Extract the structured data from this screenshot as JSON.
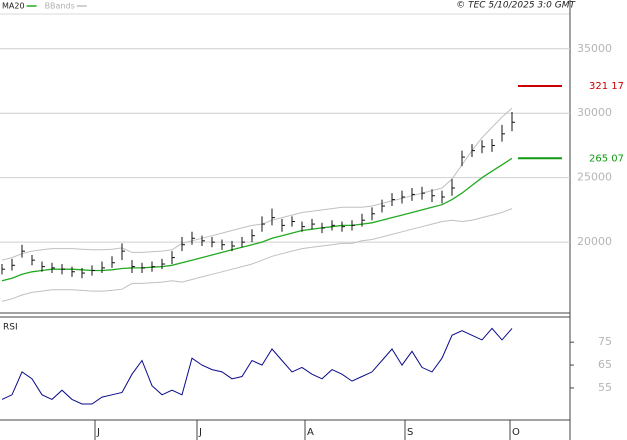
{
  "chart_data": [
    {
      "type": "ohlc",
      "source": "© TEC 5/10/2025 3:0 GMT",
      "xlim": [
        -0.2,
        56.8
      ],
      "ylim": [
        14500,
        37700
      ],
      "yticks": [
        20000,
        25000,
        30000,
        35000
      ],
      "grid": true,
      "close": [
        17900,
        18200,
        19300,
        18600,
        18100,
        18000,
        17900,
        17700,
        17600,
        17800,
        18000,
        18400,
        19300,
        18100,
        18000,
        18100,
        18300,
        18800,
        19800,
        20300,
        20100,
        20000,
        19800,
        19700,
        20000,
        20500,
        21400,
        21900,
        21300,
        21600,
        21200,
        21400,
        21100,
        21300,
        21200,
        21300,
        21700,
        22200,
        22800,
        23300,
        23500,
        23700,
        23800,
        23600,
        23500,
        24200,
        26600,
        27100,
        27400,
        27500,
        28400,
        29300
      ],
      "high": [
        18300,
        18700,
        19800,
        19000,
        18500,
        18400,
        18300,
        18100,
        18000,
        18200,
        18500,
        18900,
        19900,
        18600,
        18400,
        18500,
        18700,
        19300,
        20400,
        20800,
        20500,
        20400,
        20200,
        20100,
        20400,
        21000,
        22000,
        22600,
        21800,
        22000,
        21600,
        21800,
        21500,
        21700,
        21600,
        21700,
        22200,
        22700,
        23300,
        23800,
        24000,
        24200,
        24300,
        24100,
        24000,
        24900,
        27100,
        27600,
        27900,
        28000,
        29100,
        30100
      ],
      "low": [
        17500,
        17800,
        18800,
        18200,
        17700,
        17600,
        17500,
        17300,
        17200,
        17400,
        17600,
        18000,
        18600,
        17600,
        17600,
        17700,
        17900,
        18300,
        19300,
        19800,
        19700,
        19600,
        19400,
        19300,
        19600,
        20000,
        20800,
        21300,
        20800,
        21200,
        20800,
        21000,
        20700,
        20900,
        20800,
        20900,
        21200,
        21700,
        22300,
        22800,
        23000,
        23200,
        23300,
        23100,
        23000,
        23600,
        25900,
        26600,
        26900,
        27000,
        27800,
        28600
      ],
      "color": "#111111",
      "series": [
        {
          "name": "MA20",
          "color": "#22aa22",
          "values": [
            17000,
            17200,
            17500,
            17700,
            17800,
            17900,
            17900,
            17900,
            17850,
            17800,
            17800,
            17850,
            17950,
            18000,
            18000,
            18050,
            18100,
            18200,
            18400,
            18600,
            18800,
            19000,
            19200,
            19400,
            19600,
            19800,
            20000,
            20300,
            20500,
            20700,
            20900,
            21000,
            21100,
            21200,
            21300,
            21300,
            21400,
            21500,
            21700,
            21900,
            22100,
            22300,
            22500,
            22700,
            22900,
            23300,
            23800,
            24400,
            25000,
            25500,
            26000,
            26500
          ]
        },
        {
          "name": "BBands",
          "color": "#c0c0c0",
          "upper": [
            18600,
            18800,
            19100,
            19300,
            19400,
            19500,
            19500,
            19500,
            19450,
            19400,
            19400,
            19450,
            19550,
            19200,
            19200,
            19250,
            19300,
            19400,
            19900,
            20100,
            20300,
            20500,
            20700,
            20900,
            21100,
            21300,
            21400,
            21700,
            21900,
            22100,
            22300,
            22400,
            22500,
            22600,
            22700,
            22700,
            22700,
            22800,
            23000,
            23200,
            23400,
            23600,
            23800,
            24000,
            24200,
            24900,
            26000,
            27100,
            28100,
            28900,
            29700,
            30400
          ],
          "lower": [
            15400,
            15600,
            15900,
            16100,
            16200,
            16300,
            16300,
            16300,
            16250,
            16200,
            16200,
            16250,
            16350,
            16800,
            16800,
            16850,
            16900,
            17000,
            16900,
            17100,
            17300,
            17500,
            17700,
            17900,
            18100,
            18300,
            18600,
            18900,
            19100,
            19300,
            19500,
            19600,
            19700,
            19800,
            19900,
            19900,
            20100,
            20200,
            20400,
            20600,
            20800,
            21000,
            21200,
            21400,
            21600,
            21700,
            21600,
            21700,
            21900,
            22100,
            22300,
            22600
          ]
        }
      ],
      "levels": [
        {
          "value": 32117,
          "label": "321 17",
          "color": "#cc0000"
        },
        {
          "value": 26507,
          "label": "265 07",
          "color": "#119911"
        }
      ]
    },
    {
      "type": "line",
      "label": "RSI",
      "xlim": [
        -0.2,
        56.8
      ],
      "xticks": [
        {
          "value": 9.3,
          "label": "J"
        },
        {
          "value": 19.5,
          "label": "J"
        },
        {
          "value": 30.3,
          "label": "A"
        },
        {
          "value": 40.3,
          "label": "S"
        },
        {
          "value": 50.8,
          "label": "O"
        }
      ],
      "ylim": [
        41,
        86
      ],
      "yticks": [
        55,
        65,
        75
      ],
      "color": "#0a0a8c",
      "values": [
        50,
        52,
        62,
        59,
        52,
        50,
        54,
        50,
        48,
        48,
        51,
        52,
        53,
        61,
        67,
        56,
        52,
        54,
        52,
        68,
        65,
        63,
        62,
        59,
        60,
        67,
        65,
        72,
        67,
        62,
        64,
        61,
        59,
        63,
        61,
        58,
        60,
        62,
        67,
        72,
        65,
        71,
        64,
        62,
        68,
        78,
        80,
        78,
        76,
        81,
        76,
        81
      ]
    }
  ]
}
